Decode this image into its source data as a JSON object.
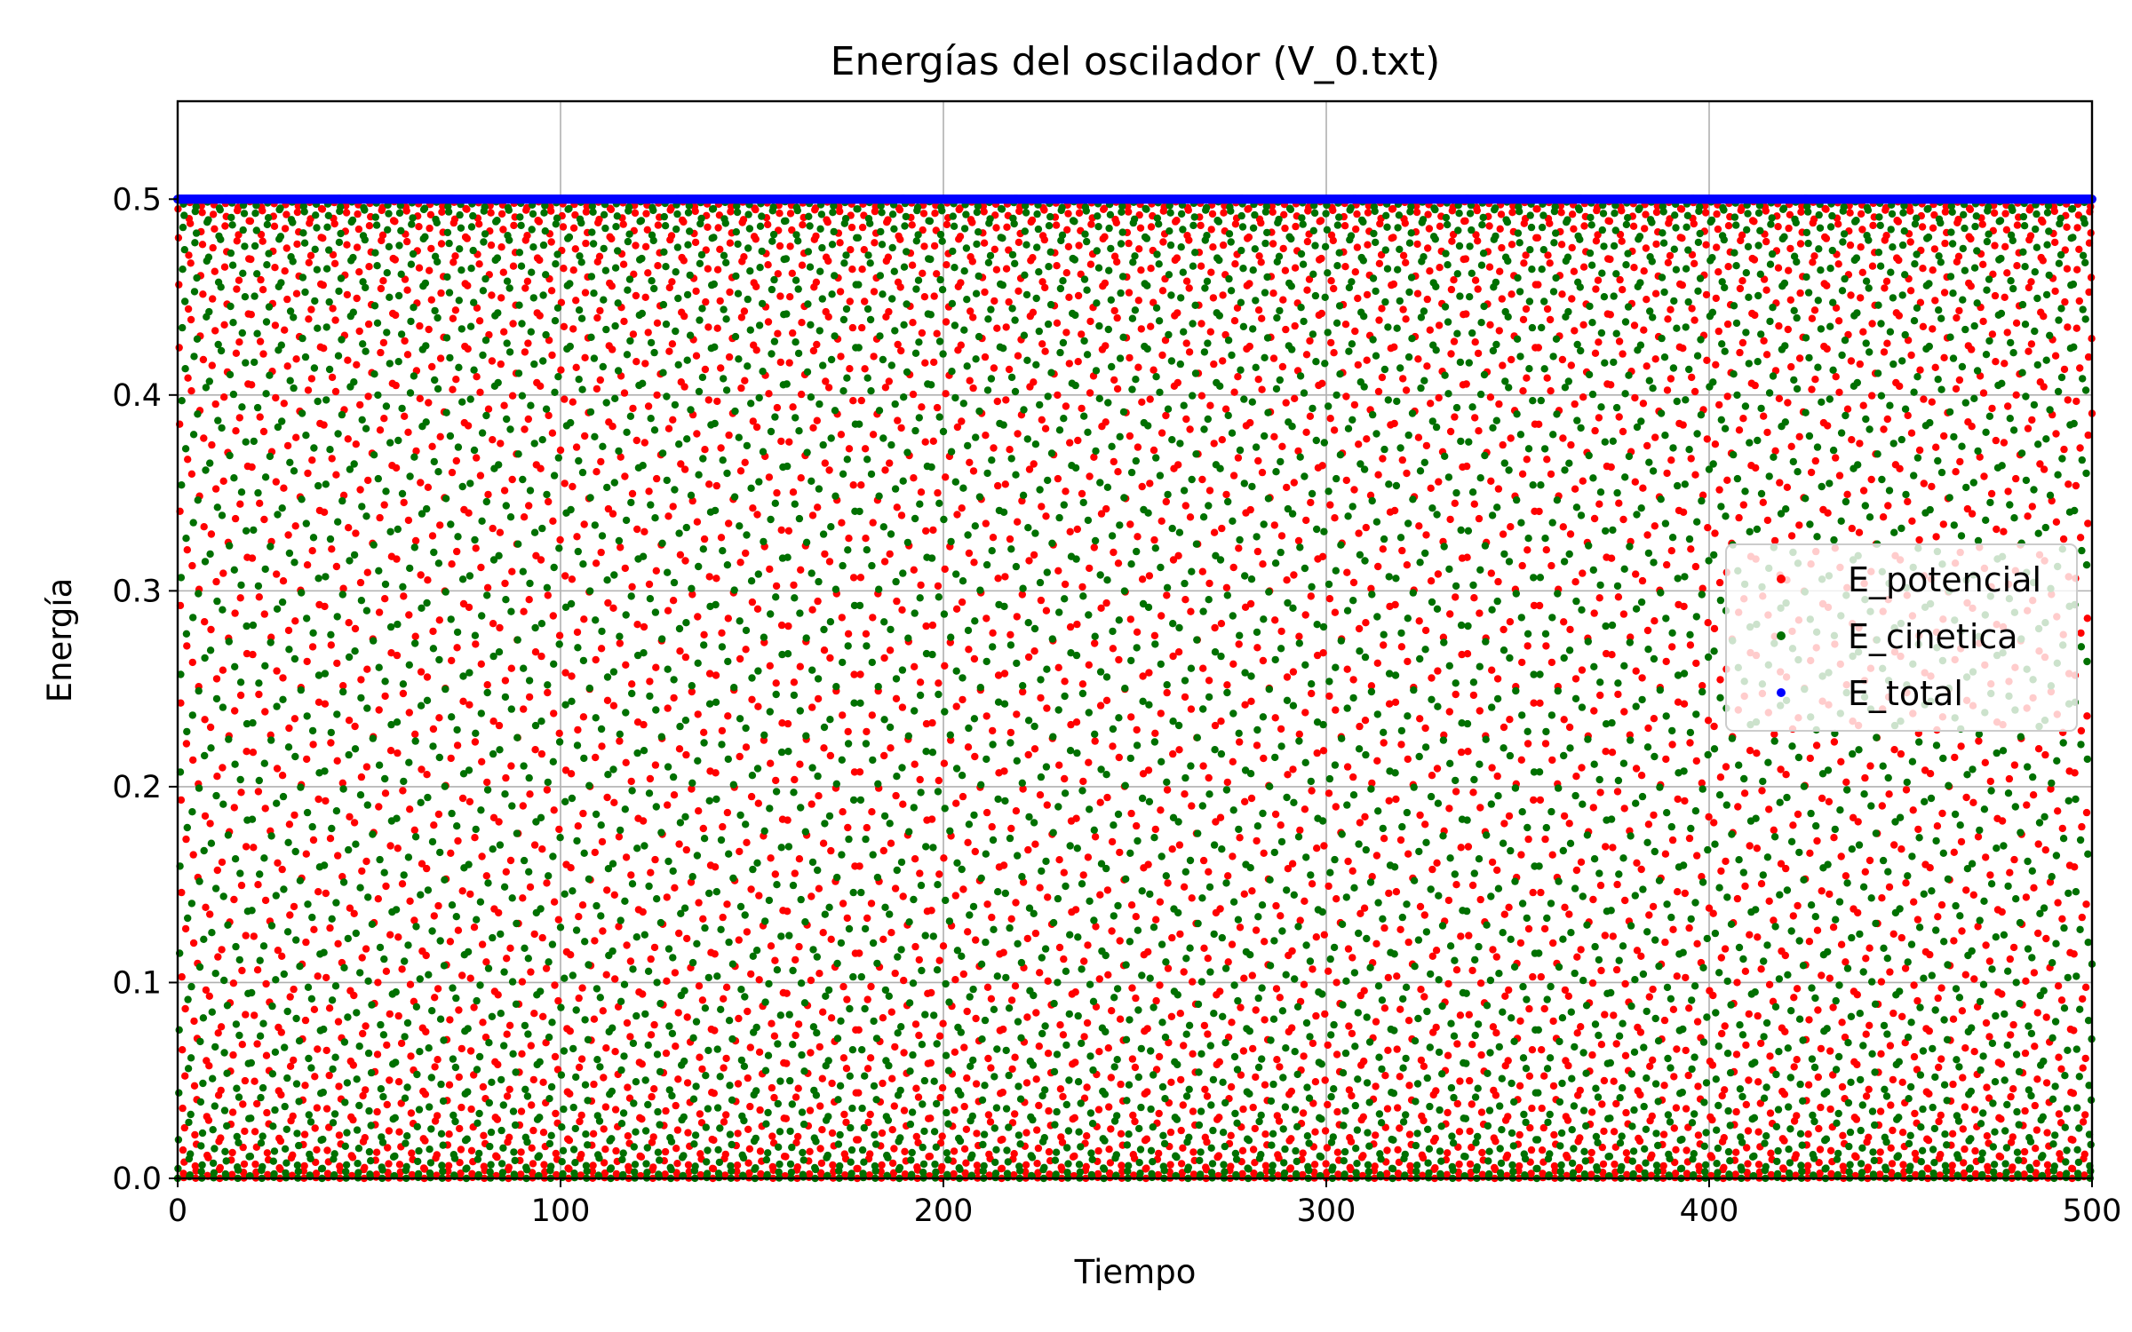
{
  "chart_data": {
    "type": "scatter",
    "title": "Energías del oscilador (V_0.txt)",
    "xlabel": "Tiempo",
    "ylabel": "Energía",
    "xlim": [
      0,
      500
    ],
    "ylim": [
      0,
      0.55
    ],
    "xticks": [
      0,
      100,
      200,
      300,
      400,
      500
    ],
    "xtick_labels": [
      "0",
      "100",
      "200",
      "300",
      "400",
      "500"
    ],
    "yticks": [
      0.0,
      0.1,
      0.2,
      0.3,
      0.4,
      0.5
    ],
    "ytick_labels": [
      "0.0",
      "0.1",
      "0.2",
      "0.3",
      "0.4",
      "0.5"
    ],
    "grid": true,
    "legend_position": "center-right",
    "series": [
      {
        "name": "E_potencial",
        "color": "#ff0000",
        "formula": "0.5*cos(t)^2",
        "t_start": 0,
        "t_end": 500,
        "dt": 0.1
      },
      {
        "name": "E_cinetica",
        "color": "#007000",
        "formula": "0.5*sin(t)^2",
        "t_start": 0,
        "t_end": 500,
        "dt": 0.1
      },
      {
        "name": "E_total",
        "color": "#0000ff",
        "formula": "0.5",
        "t_start": 0,
        "t_end": 500,
        "dt": 0.1,
        "constant_value": 0.5
      }
    ]
  }
}
